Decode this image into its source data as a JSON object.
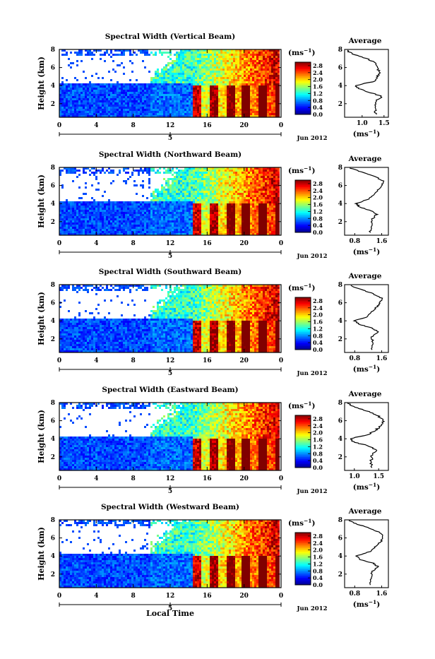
{
  "chart_data": {
    "type": "heatmap",
    "xlabel": "Local Time",
    "date_label": "Jun 2012",
    "date_tick_label": "5",
    "unit_label": "(ms",
    "unit_exponent": "−1",
    "colorbar_ticks": [
      "2.8",
      "2.4",
      "2.0",
      "1.6",
      "1.2",
      "0.8",
      "0.4",
      "0.0"
    ],
    "colorbar_range": [
      0.0,
      3.0
    ],
    "x_ticks": [
      "0",
      "4",
      "8",
      "12",
      "16",
      "20",
      "0"
    ],
    "x_range_hours": [
      0,
      24
    ],
    "y_ticks": [
      "2",
      "4",
      "6",
      "8"
    ],
    "y_range_km": [
      0.5,
      8
    ],
    "ylabel": "Height (km)",
    "avg_title": "Average",
    "avg_unit": "(ms",
    "avg_y_ticks": [
      "2",
      "4",
      "6",
      "8"
    ],
    "panels": [
      {
        "title": "Spectral Width (Vertical Beam)",
        "avg_x_ticks": [
          "1.0",
          "1.5"
        ],
        "avg_x_range": [
          0.6,
          1.6
        ],
        "avg_profile": {
          "height_km": [
            0.8,
            1.5,
            2.2,
            2.8,
            3.2,
            3.6,
            4.0,
            4.5,
            5.0,
            5.5,
            6.0,
            6.5,
            7.0,
            7.5,
            8.0
          ],
          "value": [
            1.3,
            1.3,
            1.3,
            1.45,
            1.2,
            0.95,
            0.85,
            1.3,
            1.35,
            1.4,
            1.35,
            1.3,
            1.1,
            0.8,
            0.6
          ]
        }
      },
      {
        "title": "Spectral Width (Northward Beam)",
        "avg_x_ticks": [
          "0.8",
          "1.6"
        ],
        "avg_x_range": [
          0.5,
          1.8
        ],
        "avg_profile": {
          "height_km": [
            0.8,
            1.5,
            2.2,
            2.8,
            3.2,
            3.6,
            4.0,
            4.5,
            5.0,
            5.5,
            6.0,
            6.5,
            7.0,
            7.5,
            8.0
          ],
          "value": [
            1.25,
            1.3,
            1.3,
            1.45,
            1.3,
            0.95,
            0.85,
            1.2,
            1.35,
            1.5,
            1.6,
            1.65,
            1.4,
            1.0,
            0.6
          ]
        }
      },
      {
        "title": "Spectral Width (Southward Beam)",
        "avg_x_ticks": [
          "0.8",
          "1.6"
        ],
        "avg_x_range": [
          0.5,
          1.8
        ],
        "avg_profile": {
          "height_km": [
            0.8,
            1.5,
            2.2,
            2.8,
            3.2,
            3.6,
            4.0,
            4.5,
            5.0,
            5.5,
            6.0,
            6.5,
            7.0,
            7.5,
            8.0
          ],
          "value": [
            1.3,
            1.35,
            1.3,
            1.5,
            1.3,
            0.95,
            0.8,
            1.2,
            1.3,
            1.45,
            1.55,
            1.6,
            1.35,
            0.95,
            0.6
          ]
        }
      },
      {
        "title": "Spectral Width (Eastward Beam)",
        "avg_x_ticks": [
          "1.0",
          "1.5"
        ],
        "avg_x_range": [
          0.8,
          1.7
        ],
        "avg_profile": {
          "height_km": [
            0.8,
            1.5,
            2.2,
            2.8,
            3.2,
            3.6,
            4.0,
            4.5,
            5.0,
            5.5,
            6.0,
            6.5,
            7.0,
            7.5,
            8.0
          ],
          "value": [
            1.35,
            1.35,
            1.35,
            1.45,
            1.3,
            1.0,
            0.9,
            1.3,
            1.45,
            1.55,
            1.6,
            1.5,
            1.3,
            1.0,
            0.85
          ]
        }
      },
      {
        "title": "Spectral Width (Westward Beam)",
        "avg_x_ticks": [
          "0.8",
          "1.6"
        ],
        "avg_x_range": [
          0.5,
          1.8
        ],
        "avg_profile": {
          "height_km": [
            0.8,
            1.5,
            2.2,
            2.8,
            3.2,
            3.6,
            4.0,
            4.5,
            5.0,
            5.5,
            6.0,
            6.5,
            7.0,
            7.5,
            8.0
          ],
          "value": [
            1.25,
            1.3,
            1.3,
            1.5,
            1.35,
            0.95,
            0.85,
            1.25,
            1.4,
            1.55,
            1.65,
            1.6,
            1.3,
            0.9,
            0.55
          ]
        }
      }
    ]
  },
  "colors": {
    "jet": [
      "#00008f",
      "#0000ff",
      "#0080ff",
      "#00ffff",
      "#80ff80",
      "#ffff00",
      "#ff8000",
      "#ff0000",
      "#800000"
    ]
  }
}
